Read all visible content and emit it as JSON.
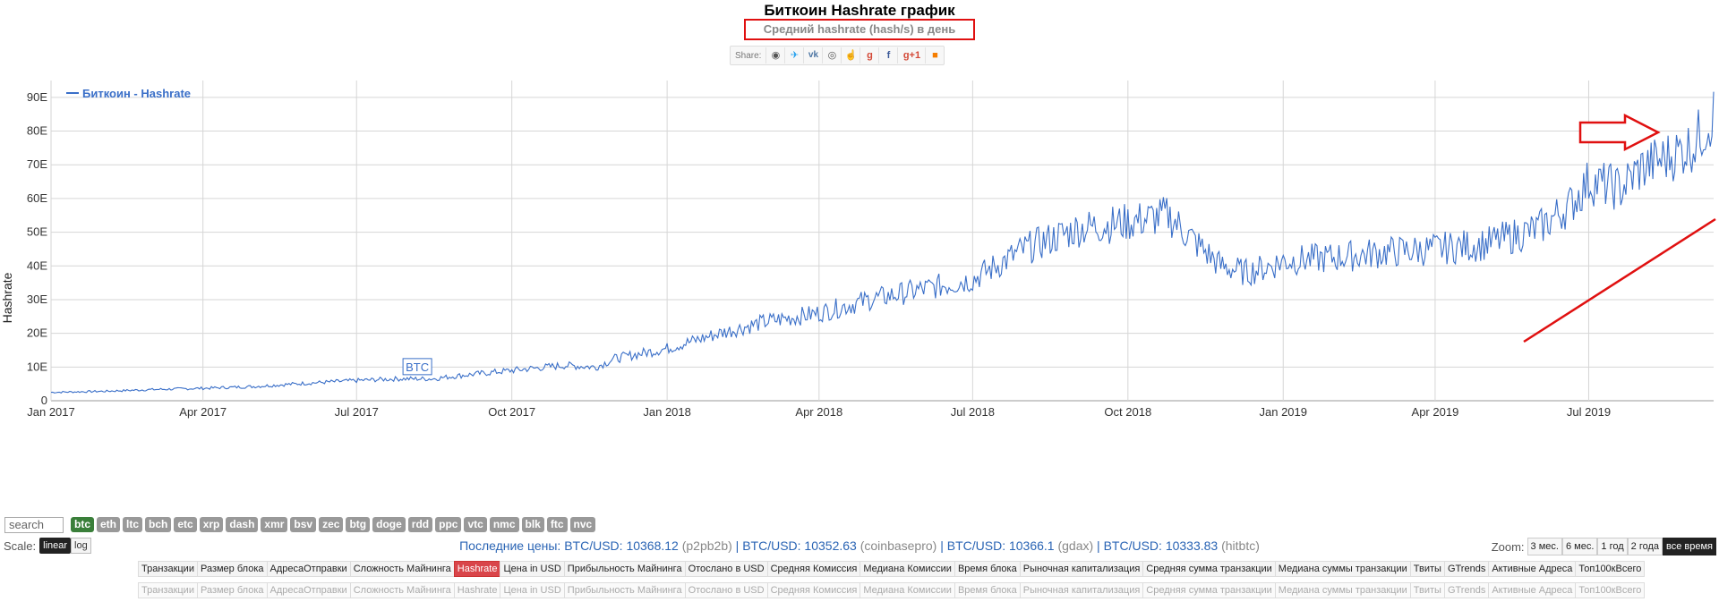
{
  "header": {
    "title": "Биткоин Hashrate график",
    "subtitle": "Средний hashrate (hash/s) в день",
    "share_label": "Share:"
  },
  "share_icons": [
    "reddit-icon",
    "twitter-icon",
    "vk-icon",
    "weibo-icon",
    "like-icon",
    "google-plus-icon",
    "facebook-icon",
    "google-plus-one-icon",
    "blogger-icon"
  ],
  "chart_data": {
    "type": "line",
    "ylabel": "Hashrate",
    "legend": "Биткоин - Hashrate",
    "legend_position": "top-left",
    "series_color": "#3a6fc8",
    "grid": true,
    "xlim": [
      "2017-01-01",
      "2019-09-13"
    ],
    "ylim": [
      0,
      95
    ],
    "x_ticks": [
      {
        "date": "2017-01-01",
        "label": "Jan 2017"
      },
      {
        "date": "2017-04-01",
        "label": "Apr 2017"
      },
      {
        "date": "2017-07-01",
        "label": "Jul 2017"
      },
      {
        "date": "2017-10-01",
        "label": "Oct 2017"
      },
      {
        "date": "2018-01-01",
        "label": "Jan 2018"
      },
      {
        "date": "2018-04-01",
        "label": "Apr 2018"
      },
      {
        "date": "2018-07-01",
        "label": "Jul 2018"
      },
      {
        "date": "2018-10-01",
        "label": "Oct 2018"
      },
      {
        "date": "2019-01-01",
        "label": "Jan 2019"
      },
      {
        "date": "2019-04-01",
        "label": "Apr 2019"
      },
      {
        "date": "2019-07-01",
        "label": "Jul 2019"
      }
    ],
    "y_ticks": [
      {
        "value": 0,
        "label": "0"
      },
      {
        "value": 10,
        "label": "10E"
      },
      {
        "value": 20,
        "label": "20E"
      },
      {
        "value": 30,
        "label": "30E"
      },
      {
        "value": 40,
        "label": "40E"
      },
      {
        "value": 50,
        "label": "50E"
      },
      {
        "value": 60,
        "label": "60E"
      },
      {
        "value": 70,
        "label": "70E"
      },
      {
        "value": 80,
        "label": "80E"
      },
      {
        "value": 90,
        "label": "90E"
      }
    ],
    "points": [
      [
        "2017-01-01",
        2.5
      ],
      [
        "2017-02-01",
        2.8
      ],
      [
        "2017-03-01",
        3.3
      ],
      [
        "2017-04-01",
        3.7
      ],
      [
        "2017-05-01",
        4.2
      ],
      [
        "2017-06-01",
        5.2
      ],
      [
        "2017-07-01",
        6.0
      ],
      [
        "2017-07-25",
        6.5
      ],
      [
        "2017-08-15",
        6.5
      ],
      [
        "2017-09-01",
        7.5
      ],
      [
        "2017-10-01",
        9.0
      ],
      [
        "2017-11-01",
        10.5
      ],
      [
        "2017-11-20",
        10.0
      ],
      [
        "2017-12-01",
        12.5
      ],
      [
        "2018-01-01",
        15.5
      ],
      [
        "2018-02-01",
        20.0
      ],
      [
        "2018-03-01",
        23.5
      ],
      [
        "2018-04-01",
        26.0
      ],
      [
        "2018-05-01",
        30.0
      ],
      [
        "2018-06-01",
        33.0
      ],
      [
        "2018-07-01",
        36.0
      ],
      [
        "2018-08-01",
        45.0
      ],
      [
        "2018-09-01",
        51.0
      ],
      [
        "2018-10-01",
        53.0
      ],
      [
        "2018-10-25",
        55.0
      ],
      [
        "2018-11-10",
        47.0
      ],
      [
        "2018-11-25",
        40.0
      ],
      [
        "2018-12-10",
        38.0
      ],
      [
        "2018-12-25",
        40.0
      ],
      [
        "2019-01-01",
        41.5
      ],
      [
        "2019-02-01",
        42.5
      ],
      [
        "2019-03-01",
        44.0
      ],
      [
        "2019-04-01",
        45.0
      ],
      [
        "2019-05-01",
        46.5
      ],
      [
        "2019-06-01",
        51.0
      ],
      [
        "2019-06-20",
        58.0
      ],
      [
        "2019-07-01",
        65.0
      ],
      [
        "2019-07-20",
        63.0
      ],
      [
        "2019-08-01",
        69.0
      ],
      [
        "2019-08-20",
        73.0
      ],
      [
        "2019-09-01",
        76.0
      ],
      [
        "2019-09-13",
        85.0
      ]
    ],
    "annotation": {
      "date": "2017-08-06",
      "value": 7.2,
      "label": "BTC"
    }
  },
  "controls": {
    "search_placeholder": "search",
    "coins": [
      "btc",
      "eth",
      "ltc",
      "bch",
      "etc",
      "xrp",
      "dash",
      "xmr",
      "bsv",
      "zec",
      "btg",
      "doge",
      "rdd",
      "ppc",
      "vtc",
      "nmc",
      "blk",
      "ftc",
      "nvc"
    ],
    "active_coin": "btc",
    "scale_label": "Scale:",
    "scale_options": [
      "linear",
      "log"
    ],
    "active_scale": "linear",
    "zoom_label": "Zoom:",
    "zoom_options": [
      "3 мес.",
      "6 мес.",
      "1 год",
      "2 года",
      "все время"
    ],
    "active_zoom": "все время"
  },
  "prices": {
    "label": "Последние цены:",
    "items": [
      {
        "pair": "BTC/USD: 10368.12",
        "src": "(p2pb2b)"
      },
      {
        "pair": "BTC/USD: 10352.63",
        "src": "(coinbasepro)"
      },
      {
        "pair": "BTC/USD: 10366.1",
        "src": "(gdax)"
      },
      {
        "pair": "BTC/USD: 10333.83",
        "src": "(hitbtc)"
      }
    ]
  },
  "tabs": [
    "Транзакции",
    "Размер блока",
    "АдресаОтправки",
    "Сложность Майнинга",
    "Hashrate",
    "Цена in USD",
    "Прибыльность Майнинга",
    "Отослано в USD",
    "Средняя Комиссия",
    "Медиана Комиссии",
    "Время блока",
    "Рыночная капитализация",
    "Средняя сумма транзакции",
    "Медиана суммы транзакции",
    "Твиты",
    "GTrends",
    "Активные Адреса",
    "Топ100кВсего"
  ],
  "active_tab": "Hashrate",
  "colors": {
    "accent_red": "#e01010",
    "tab_active": "#d9454a",
    "line": "#3a6fc8",
    "coin_active": "#3a7f3a"
  }
}
